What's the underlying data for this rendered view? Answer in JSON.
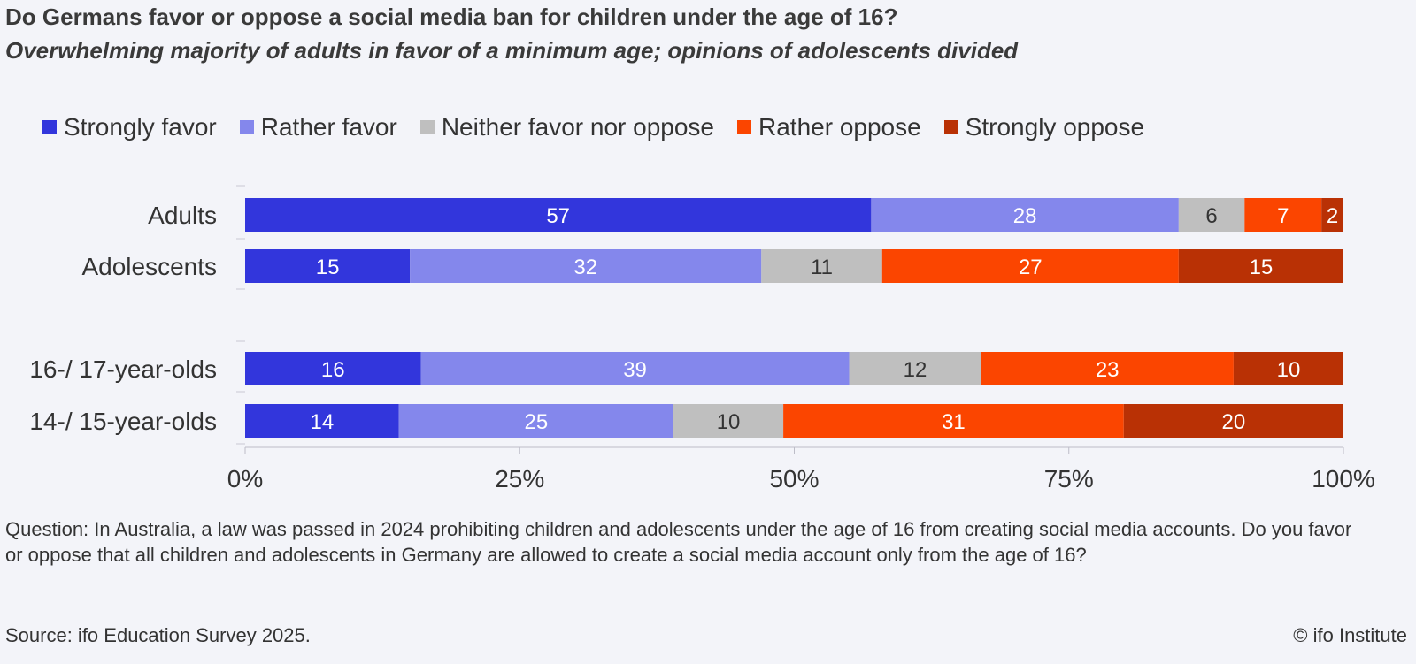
{
  "title": "Do Germans favor or oppose a social media ban for children under the age of 16?",
  "subtitle": "Overwhelming majority of adults in favor of a minimum age; opinions of adolescents divided",
  "footnote": "Question: In Australia, a law was passed in 2024 prohibiting children and adolescents under the age of 16 from creating social media accounts. Do you favor or oppose that all children and adolescents in Germany are allowed to create a social media account only from the age of 16?",
  "source": "Source: ifo Education Survey 2025.",
  "credit": "© ifo Institute",
  "chart_data": {
    "type": "bar",
    "orientation": "horizontal",
    "stacked": true,
    "categories": [
      "Adults",
      "Adolescents",
      "16-/ 17-year-olds",
      "14-/ 15-year-olds"
    ],
    "series": [
      {
        "name": "Strongly favor",
        "color": "#3236dc",
        "values": [
          57,
          15,
          16,
          14
        ]
      },
      {
        "name": "Rather favor",
        "color": "#8487ec",
        "values": [
          28,
          32,
          39,
          25
        ]
      },
      {
        "name": "Neither favor nor oppose",
        "color": "#bfbfbf",
        "values": [
          6,
          11,
          12,
          10
        ]
      },
      {
        "name": "Rather oppose",
        "color": "#fb4500",
        "values": [
          7,
          27,
          23,
          31
        ]
      },
      {
        "name": "Strongly oppose",
        "color": "#b93105",
        "values": [
          2,
          15,
          10,
          20
        ]
      }
    ],
    "label_colors": [
      "#ffffff",
      "#ffffff",
      "#333333",
      "#ffffff",
      "#ffffff"
    ],
    "xticks": [
      "0%",
      "25%",
      "50%",
      "75%",
      "100%"
    ],
    "xlim": [
      0,
      100
    ],
    "legend_position": "top",
    "grid": false
  }
}
